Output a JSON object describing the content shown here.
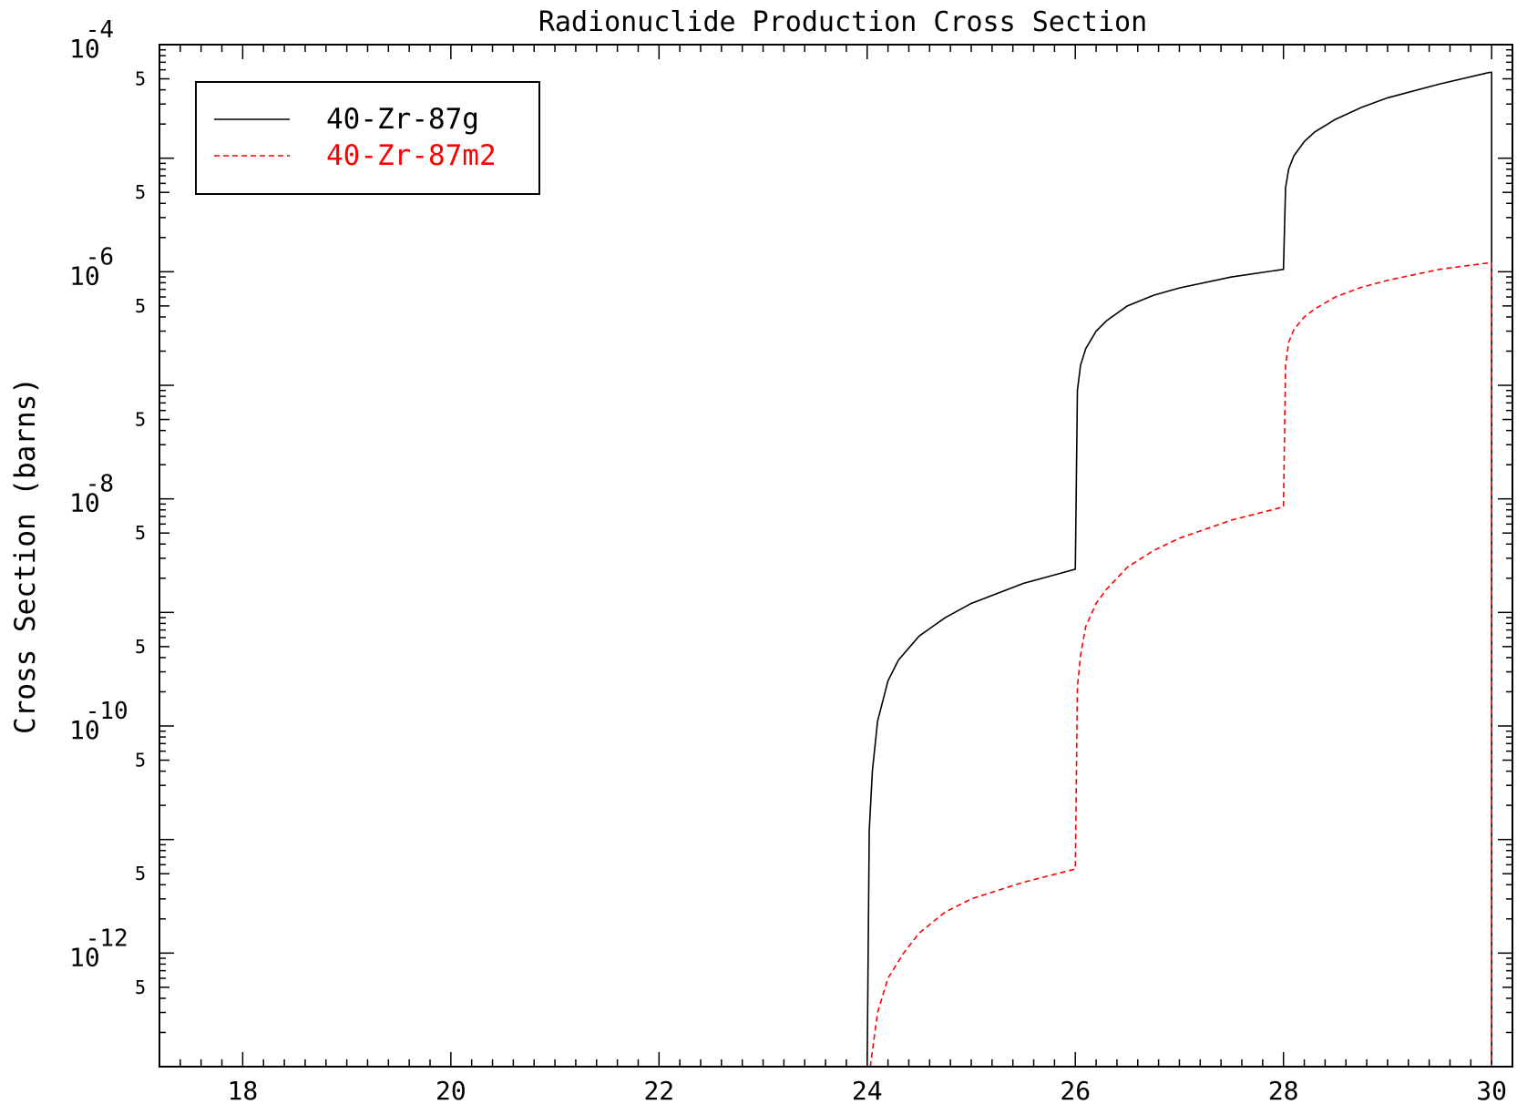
{
  "chart_data": {
    "type": "line",
    "title": "Radionuclide Production Cross Section",
    "xlabel": "",
    "ylabel": "Cross Section (barns)",
    "xlim": [
      17.2,
      30.2
    ],
    "ylim": [
      1e-13,
      0.0001
    ],
    "yscale": "log",
    "x_ticks": [
      18,
      20,
      22,
      24,
      26,
      28,
      30
    ],
    "x_tick_labels": [
      "18",
      "20",
      "22",
      "24",
      "26",
      "28",
      "30"
    ],
    "y_major": [
      {
        "base": "10",
        "exp": "-4",
        "value": 0.0001
      },
      {
        "base": "10",
        "exp": "-6",
        "value": 1e-06
      },
      {
        "base": "10",
        "exp": "-8",
        "value": 1e-08
      },
      {
        "base": "10",
        "exp": "-10",
        "value": 1e-10
      },
      {
        "base": "10",
        "exp": "-12",
        "value": 1e-12
      }
    ],
    "y_minor_label": "5",
    "legend_position": "top-left",
    "series": [
      {
        "name": "40-Zr-87g",
        "color": "#000000",
        "style": "solid",
        "points": [
          [
            24.0,
            1e-13
          ],
          [
            24.02,
            1.2e-11
          ],
          [
            24.05,
            4e-11
          ],
          [
            24.1,
            1.1e-10
          ],
          [
            24.2,
            2.5e-10
          ],
          [
            24.3,
            3.8e-10
          ],
          [
            24.5,
            6.2e-10
          ],
          [
            24.75,
            9e-10
          ],
          [
            25.0,
            1.2e-09
          ],
          [
            25.5,
            1.8e-09
          ],
          [
            26.0,
            2.4e-09
          ],
          [
            26.02,
            9e-08
          ],
          [
            26.05,
            1.5e-07
          ],
          [
            26.1,
            2.1e-07
          ],
          [
            26.2,
            3e-07
          ],
          [
            26.3,
            3.7e-07
          ],
          [
            26.5,
            5e-07
          ],
          [
            26.75,
            6.2e-07
          ],
          [
            27.0,
            7.2e-07
          ],
          [
            27.5,
            9e-07
          ],
          [
            28.0,
            1.05e-06
          ],
          [
            28.02,
            5.5e-06
          ],
          [
            28.05,
            8e-06
          ],
          [
            28.1,
            1.05e-05
          ],
          [
            28.2,
            1.4e-05
          ],
          [
            28.3,
            1.7e-05
          ],
          [
            28.5,
            2.2e-05
          ],
          [
            28.75,
            2.8e-05
          ],
          [
            29.0,
            3.4e-05
          ],
          [
            29.5,
            4.5e-05
          ],
          [
            29.98,
            5.7e-05
          ],
          [
            30.0,
            5.7e-05
          ],
          [
            30.0,
            1e-13
          ]
        ]
      },
      {
        "name": "40-Zr-87m2",
        "color": "#ff0000",
        "style": "dashed",
        "points": [
          [
            24.03,
            1e-13
          ],
          [
            24.1,
            3e-13
          ],
          [
            24.2,
            6e-13
          ],
          [
            24.35,
            1e-12
          ],
          [
            24.5,
            1.5e-12
          ],
          [
            24.75,
            2.3e-12
          ],
          [
            25.0,
            3e-12
          ],
          [
            25.5,
            4.2e-12
          ],
          [
            26.0,
            5.5e-12
          ],
          [
            26.02,
            2.2e-10
          ],
          [
            26.05,
            4.2e-10
          ],
          [
            26.1,
            7.5e-10
          ],
          [
            26.2,
            1.2e-09
          ],
          [
            26.3,
            1.6e-09
          ],
          [
            26.5,
            2.5e-09
          ],
          [
            26.75,
            3.5e-09
          ],
          [
            27.0,
            4.5e-09
          ],
          [
            27.5,
            6.5e-09
          ],
          [
            28.0,
            8.5e-09
          ],
          [
            28.02,
            1.5e-07
          ],
          [
            28.05,
            2.4e-07
          ],
          [
            28.1,
            3.1e-07
          ],
          [
            28.2,
            4e-07
          ],
          [
            28.3,
            4.7e-07
          ],
          [
            28.5,
            6e-07
          ],
          [
            28.75,
            7.3e-07
          ],
          [
            29.0,
            8.4e-07
          ],
          [
            29.5,
            1.05e-06
          ],
          [
            29.98,
            1.2e-06
          ],
          [
            30.0,
            1.2e-06
          ],
          [
            30.0,
            1e-13
          ]
        ]
      }
    ]
  }
}
